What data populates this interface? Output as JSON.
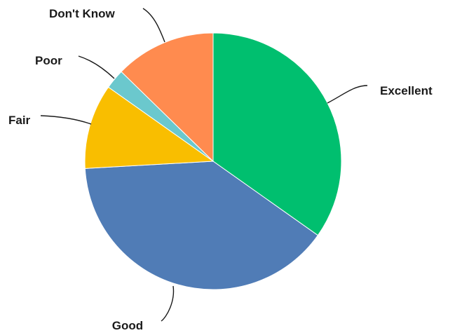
{
  "chart_data": {
    "type": "pie",
    "title": "",
    "start_angle_deg": 0,
    "direction": "clockwise",
    "labels_outside": true,
    "leader_lines": true,
    "categories": [
      "Excellent",
      "Good",
      "Fair",
      "Poor",
      "Don't Know"
    ],
    "values": [
      34.8,
      39.3,
      10.7,
      2.5,
      12.7
    ],
    "colors": [
      "#00BF6F",
      "#507CB6",
      "#F9BE00",
      "#6BC8CD",
      "#FF8B4F"
    ]
  }
}
